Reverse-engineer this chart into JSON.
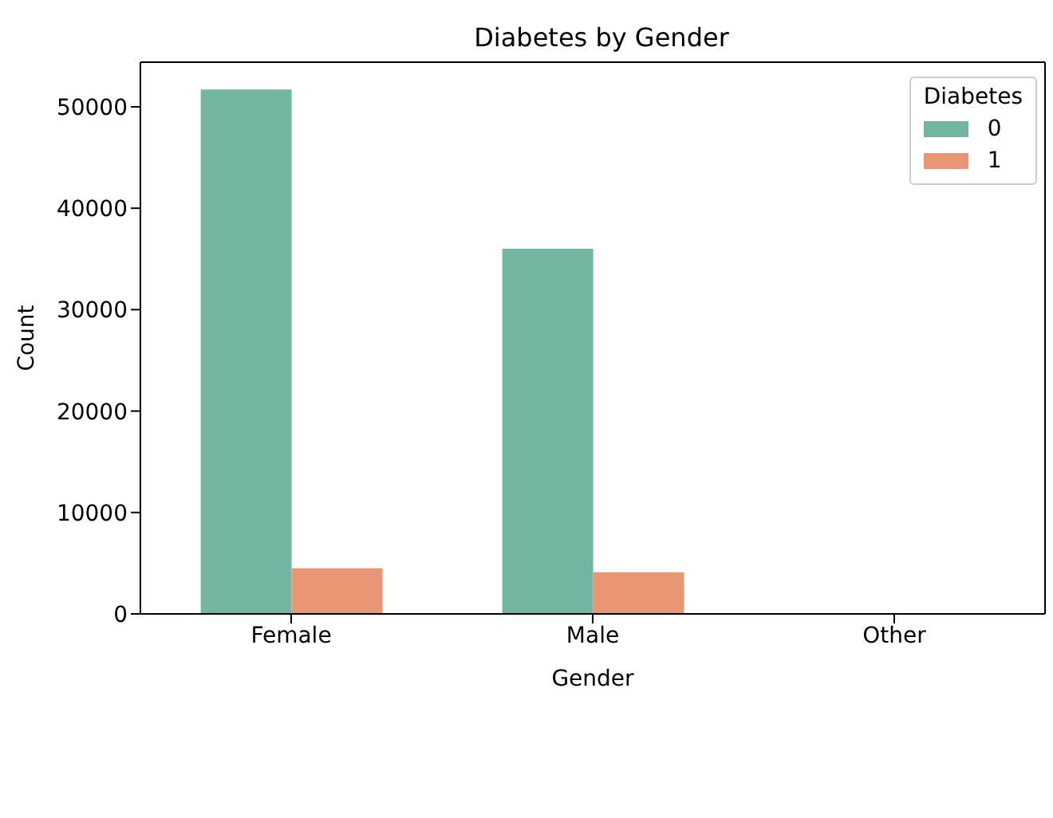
{
  "chart_data": {
    "type": "bar",
    "title": "Diabetes by Gender",
    "xlabel": "Gender",
    "ylabel": "Count",
    "legend_title": "Diabetes",
    "categories": [
      "Female",
      "Male",
      "Other"
    ],
    "series": [
      {
        "name": "0",
        "color": "#72b6a1",
        "values": [
          51700,
          36000,
          0
        ]
      },
      {
        "name": "1",
        "color": "#e99675",
        "values": [
          4500,
          4100,
          0
        ]
      }
    ],
    "ylim": [
      0,
      54400
    ],
    "yticks": [
      0,
      10000,
      20000,
      30000,
      40000,
      50000
    ],
    "grid": false,
    "legend": "top right"
  }
}
